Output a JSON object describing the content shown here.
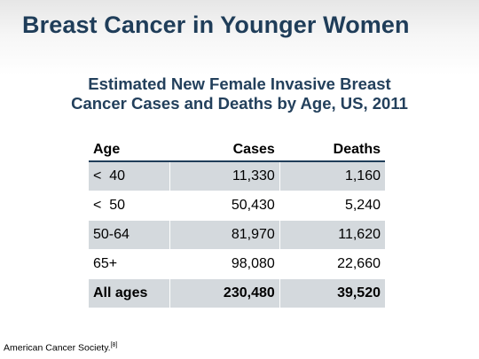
{
  "slide": {
    "title": "Breast Cancer in Younger Women"
  },
  "subtitle": {
    "line1": "Estimated New Female Invasive Breast",
    "line2": "Cancer Cases and Deaths by Age, US, 2011"
  },
  "table": {
    "headers": {
      "age": "Age",
      "cases": "Cases",
      "deaths": "Deaths"
    },
    "rows": [
      {
        "age": "<  40",
        "cases": "11,330",
        "deaths": "1,160"
      },
      {
        "age": "<  50",
        "cases": "50,430",
        "deaths": "5,240"
      },
      {
        "age": "50-64",
        "cases": "81,970",
        "deaths": "11,620"
      },
      {
        "age": "65+",
        "cases": "98,080",
        "deaths": "22,660"
      },
      {
        "age": "All ages",
        "cases": "230,480",
        "deaths": "39,520"
      }
    ]
  },
  "citation": {
    "text": "American Cancer Society.",
    "ref": "[8]"
  }
}
